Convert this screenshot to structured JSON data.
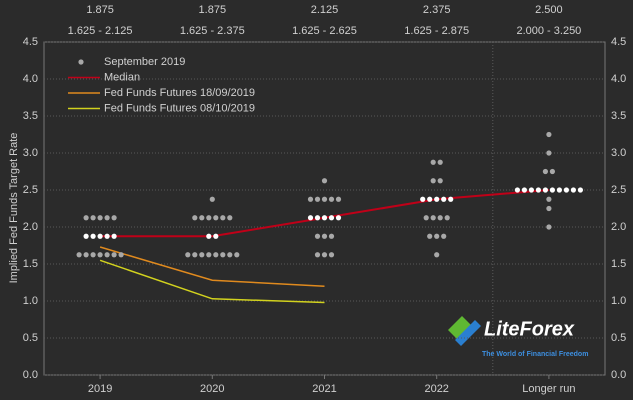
{
  "chart_data": {
    "type": "dotplot",
    "ylabel": "Implied Fed Funds Target Rate",
    "categories": [
      "2019",
      "2020",
      "2021",
      "2022",
      "Longer run"
    ],
    "top_labels": [
      "1.875",
      "1.875",
      "2.125",
      "2.375",
      "2.500"
    ],
    "range_labels": [
      "1.625 - 2.125",
      "1.625 - 2.375",
      "1.625 - 2.625",
      "1.625 - 2.875",
      "2.000 - 3.250"
    ],
    "ylim": [
      0,
      4.5
    ],
    "yticks": [
      {
        "value": 0,
        "label": "0.0"
      },
      {
        "value": 0.5,
        "label": "0.5"
      },
      {
        "value": 1,
        "label": "1.0"
      },
      {
        "value": 1.5,
        "label": "1.5"
      },
      {
        "value": 2,
        "label": "2.0"
      },
      {
        "value": 2.5,
        "label": "2.5"
      },
      {
        "value": 3,
        "label": "3.0"
      },
      {
        "value": 3.5,
        "label": "3.5"
      },
      {
        "value": 4,
        "label": "4.0"
      },
      {
        "value": 4.5,
        "label": "4.5"
      }
    ],
    "grid": true,
    "dots_name": "September 2019",
    "dots_color": "#a8a8a8",
    "dots": [
      [
        2.125,
        2.125,
        2.125,
        2.125,
        2.125,
        1.875,
        1.875,
        1.875,
        1.875,
        1.875,
        1.625,
        1.625,
        1.625,
        1.625,
        1.625,
        1.625,
        1.625
      ],
      [
        2.375,
        2.125,
        2.125,
        2.125,
        2.125,
        2.125,
        2.125,
        1.875,
        1.875,
        1.625,
        1.625,
        1.625,
        1.625,
        1.625,
        1.625,
        1.625,
        1.625
      ],
      [
        2.625,
        2.375,
        2.375,
        2.375,
        2.375,
        2.375,
        2.125,
        2.125,
        2.125,
        2.125,
        2.125,
        1.875,
        1.875,
        1.875,
        1.625,
        1.625,
        1.625
      ],
      [
        2.875,
        2.875,
        2.625,
        2.625,
        2.375,
        2.375,
        2.375,
        2.375,
        2.375,
        2.125,
        2.125,
        2.125,
        2.125,
        1.875,
        1.875,
        1.875,
        1.625
      ],
      [
        3.25,
        3,
        2.75,
        2.75,
        2.5,
        2.5,
        2.5,
        2.5,
        2.5,
        2.5,
        2.5,
        2.5,
        2.5,
        2.5,
        2.375,
        2.25,
        2
      ]
    ],
    "series": [
      {
        "name": "Median",
        "color": "#c00018",
        "values": [
          1.875,
          1.875,
          2.125,
          2.375,
          2.5
        ]
      },
      {
        "name": "Fed Funds Futures 18/09/2019",
        "color": "#e08a1e",
        "values": [
          1.73,
          1.28,
          1.2,
          null,
          null
        ]
      },
      {
        "name": "Fed Funds Futures 08/10/2019",
        "color": "#d2d21e",
        "values": [
          1.55,
          1.03,
          0.98,
          null,
          null
        ]
      }
    ],
    "watermark": {
      "brand": "LiteForex",
      "tagline": "The World of Financial Freedom"
    }
  }
}
